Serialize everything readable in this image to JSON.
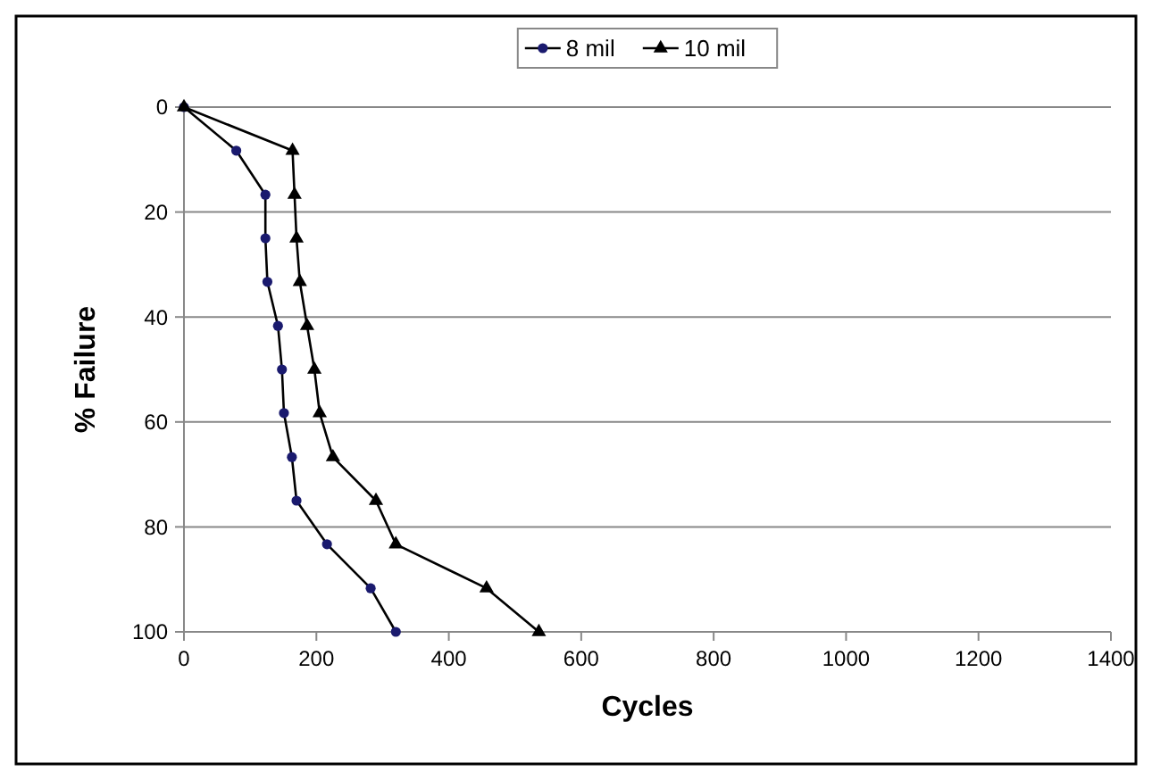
{
  "chart_data": {
    "type": "line",
    "xlabel": "Cycles",
    "ylabel": "% Failure",
    "xlim": [
      0,
      1400
    ],
    "xticks": [
      0,
      200,
      400,
      600,
      800,
      1000,
      1200,
      1400
    ],
    "ylim": [
      100,
      0
    ],
    "yticks": [
      0,
      20,
      40,
      60,
      80,
      100
    ],
    "grid": "y",
    "legend": "top",
    "line_style": "solid",
    "series": [
      {
        "name": "8 mil",
        "color": "#1a1a6e",
        "marker": "circle",
        "x": [
          0,
          79,
          123,
          123,
          126,
          142,
          148,
          151,
          163,
          170,
          216,
          282,
          320
        ],
        "values": [
          0,
          8.3,
          16.7,
          25,
          33.3,
          41.7,
          50,
          58.3,
          66.7,
          75,
          83.3,
          91.7,
          100
        ]
      },
      {
        "name": "10 mil",
        "color": "#000000",
        "marker": "triangle",
        "x": [
          0,
          164,
          167,
          170,
          175,
          186,
          197,
          205,
          225,
          290,
          320,
          457,
          536
        ],
        "values": [
          0,
          8.3,
          16.7,
          25,
          33.3,
          41.7,
          50,
          58.3,
          66.7,
          75,
          83.3,
          91.7,
          100
        ]
      }
    ]
  }
}
